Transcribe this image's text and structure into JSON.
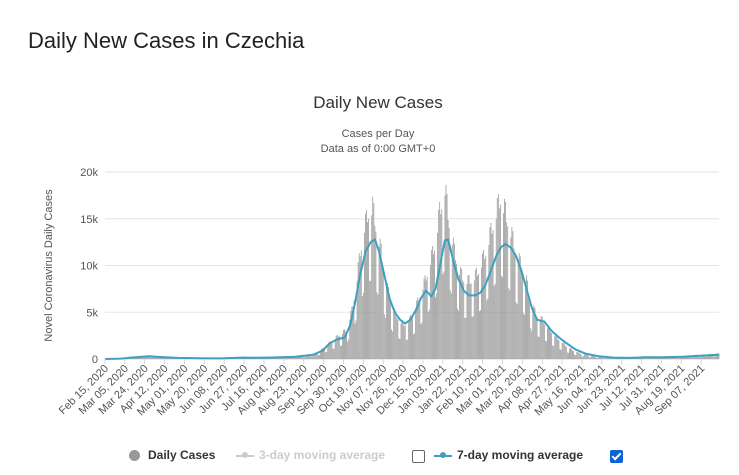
{
  "page": {
    "title": "Daily New Cases in Czechia"
  },
  "legend": {
    "daily": "Daily Cases",
    "ma3": "3-day moving average",
    "ma7": "7-day moving average",
    "ma3_checked": false,
    "ma7_checked": true
  },
  "colors": {
    "bars": "#999999",
    "line7": "#3ea0c0",
    "inactive": "#cccccc",
    "checkbox": "#0b63d6"
  },
  "chart_data": {
    "type": "bar",
    "title": "Daily New Cases",
    "subtitle": "Cases per Day",
    "subtitle2": "Data as of 0:00 GMT+0",
    "ylabel": "Novel Coronavirus Daily Cases",
    "xlabel": "",
    "ylim": [
      0,
      20000
    ],
    "yticks": [
      0,
      5000,
      10000,
      15000,
      20000
    ],
    "ytick_labels": [
      "0",
      "5k",
      "10k",
      "15k",
      "20k"
    ],
    "grid": true,
    "legend_position": "bottom",
    "x_start": "2020-02-15",
    "x_end": "2021-09-24",
    "xtick_labels": [
      "Feb 15, 2020",
      "Mar 05, 2020",
      "Mar 24, 2020",
      "Apr 12, 2020",
      "May 01, 2020",
      "May 20, 2020",
      "Jun 08, 2020",
      "Jun 27, 2020",
      "Jul 16, 2020",
      "Aug 04, 2020",
      "Aug 23, 2020",
      "Sep 11, 2020",
      "Sep 30, 2020",
      "Oct 19, 2020",
      "Nov 07, 2020",
      "Nov 26, 2020",
      "Dec 15, 2020",
      "Jan 03, 2021",
      "Jan 22, 2021",
      "Feb 10, 2021",
      "Mar 01, 2021",
      "Mar 20, 2021",
      "Apr 08, 2021",
      "Apr 27, 2021",
      "May 16, 2021",
      "Jun 04, 2021",
      "Jun 23, 2021",
      "Jul 12, 2021",
      "Jul 31, 2021",
      "Aug 19, 2021",
      "Sep 07, 2021"
    ],
    "series": [
      {
        "name": "Daily Cases",
        "type": "bar",
        "points": [
          [
            "2020-02-15",
            0
          ],
          [
            "2020-03-01",
            50
          ],
          [
            "2020-03-15",
            200
          ],
          [
            "2020-03-25",
            280
          ],
          [
            "2020-04-05",
            250
          ],
          [
            "2020-04-20",
            120
          ],
          [
            "2020-05-10",
            60
          ],
          [
            "2020-06-01",
            50
          ],
          [
            "2020-06-25",
            150
          ],
          [
            "2020-07-10",
            120
          ],
          [
            "2020-08-01",
            200
          ],
          [
            "2020-08-20",
            300
          ],
          [
            "2020-09-05",
            600
          ],
          [
            "2020-09-15",
            1500
          ],
          [
            "2020-09-25",
            2400
          ],
          [
            "2020-10-03",
            3000
          ],
          [
            "2020-10-08",
            5000
          ],
          [
            "2020-10-12",
            7500
          ],
          [
            "2020-10-16",
            11000
          ],
          [
            "2020-10-20",
            13500
          ],
          [
            "2020-10-24",
            15000
          ],
          [
            "2020-10-28",
            15500
          ],
          [
            "2020-11-01",
            13000
          ],
          [
            "2020-11-05",
            11000
          ],
          [
            "2020-11-09",
            8000
          ],
          [
            "2020-11-13",
            6500
          ],
          [
            "2020-11-17",
            5000
          ],
          [
            "2020-11-22",
            4000
          ],
          [
            "2020-11-27",
            3500
          ],
          [
            "2020-12-02",
            4000
          ],
          [
            "2020-12-07",
            5000
          ],
          [
            "2020-12-12",
            6500
          ],
          [
            "2020-12-17",
            8000
          ],
          [
            "2020-12-22",
            10000
          ],
          [
            "2020-12-27",
            12000
          ],
          [
            "2020-12-31",
            15000
          ],
          [
            "2021-01-05",
            17500
          ],
          [
            "2021-01-09",
            14000
          ],
          [
            "2021-01-14",
            11000
          ],
          [
            "2021-01-19",
            9000
          ],
          [
            "2021-01-24",
            8000
          ],
          [
            "2021-01-29",
            8000
          ],
          [
            "2021-02-03",
            8500
          ],
          [
            "2021-02-08",
            9500
          ],
          [
            "2021-02-13",
            11000
          ],
          [
            "2021-02-18",
            13000
          ],
          [
            "2021-02-23",
            15000
          ],
          [
            "2021-02-27",
            16500
          ],
          [
            "2021-03-04",
            15000
          ],
          [
            "2021-03-09",
            13000
          ],
          [
            "2021-03-14",
            11000
          ],
          [
            "2021-03-19",
            9500
          ],
          [
            "2021-03-24",
            8000
          ],
          [
            "2021-03-29",
            5500
          ],
          [
            "2021-04-03",
            4500
          ],
          [
            "2021-04-08",
            4000
          ],
          [
            "2021-04-15",
            3000
          ],
          [
            "2021-04-22",
            2200
          ],
          [
            "2021-04-29",
            1500
          ],
          [
            "2021-05-07",
            900
          ],
          [
            "2021-05-16",
            500
          ],
          [
            "2021-05-25",
            300
          ],
          [
            "2021-06-05",
            150
          ],
          [
            "2021-06-20",
            100
          ],
          [
            "2021-07-05",
            150
          ],
          [
            "2021-07-20",
            200
          ],
          [
            "2021-08-05",
            180
          ],
          [
            "2021-08-20",
            250
          ],
          [
            "2021-09-05",
            400
          ],
          [
            "2021-09-24",
            550
          ]
        ]
      },
      {
        "name": "7-day moving average",
        "type": "line",
        "points": [
          [
            "2020-02-15",
            0
          ],
          [
            "2020-03-01",
            40
          ],
          [
            "2020-03-15",
            180
          ],
          [
            "2020-03-28",
            290
          ],
          [
            "2020-04-10",
            200
          ],
          [
            "2020-04-25",
            120
          ],
          [
            "2020-05-15",
            70
          ],
          [
            "2020-06-05",
            60
          ],
          [
            "2020-06-25",
            150
          ],
          [
            "2020-07-05",
            130
          ],
          [
            "2020-07-25",
            160
          ],
          [
            "2020-08-15",
            250
          ],
          [
            "2020-09-01",
            450
          ],
          [
            "2020-09-10",
            900
          ],
          [
            "2020-09-17",
            1700
          ],
          [
            "2020-09-24",
            2100
          ],
          [
            "2020-10-01",
            2300
          ],
          [
            "2020-10-06",
            3500
          ],
          [
            "2020-10-11",
            6000
          ],
          [
            "2020-10-16",
            9000
          ],
          [
            "2020-10-21",
            11500
          ],
          [
            "2020-10-26",
            12500
          ],
          [
            "2020-10-30",
            12800
          ],
          [
            "2020-11-03",
            11500
          ],
          [
            "2020-11-08",
            9000
          ],
          [
            "2020-11-13",
            6500
          ],
          [
            "2020-11-18",
            5000
          ],
          [
            "2020-11-23",
            4200
          ],
          [
            "2020-11-28",
            3800
          ],
          [
            "2020-12-03",
            4200
          ],
          [
            "2020-12-08",
            5200
          ],
          [
            "2020-12-13",
            6500
          ],
          [
            "2020-12-18",
            7300
          ],
          [
            "2020-12-23",
            6700
          ],
          [
            "2020-12-27",
            7500
          ],
          [
            "2021-01-01",
            10500
          ],
          [
            "2021-01-05",
            12700
          ],
          [
            "2021-01-08",
            12800
          ],
          [
            "2021-01-13",
            10500
          ],
          [
            "2021-01-18",
            8500
          ],
          [
            "2021-01-23",
            7300
          ],
          [
            "2021-01-28",
            6800
          ],
          [
            "2021-02-03",
            6800
          ],
          [
            "2021-02-08",
            7100
          ],
          [
            "2021-02-13",
            8000
          ],
          [
            "2021-02-18",
            9500
          ],
          [
            "2021-02-23",
            11000
          ],
          [
            "2021-02-28",
            12000
          ],
          [
            "2021-03-04",
            12300
          ],
          [
            "2021-03-09",
            11900
          ],
          [
            "2021-03-14",
            11000
          ],
          [
            "2021-03-19",
            9500
          ],
          [
            "2021-03-24",
            7500
          ],
          [
            "2021-03-29",
            5500
          ],
          [
            "2021-04-03",
            4200
          ],
          [
            "2021-04-10",
            4000
          ],
          [
            "2021-04-17",
            3000
          ],
          [
            "2021-04-24",
            2300
          ],
          [
            "2021-05-01",
            1700
          ],
          [
            "2021-05-10",
            1000
          ],
          [
            "2021-05-20",
            550
          ],
          [
            "2021-06-01",
            300
          ],
          [
            "2021-06-15",
            150
          ],
          [
            "2021-07-01",
            120
          ],
          [
            "2021-07-15",
            180
          ],
          [
            "2021-08-01",
            190
          ],
          [
            "2021-08-20",
            250
          ],
          [
            "2021-09-05",
            350
          ],
          [
            "2021-09-24",
            450
          ]
        ]
      }
    ]
  }
}
